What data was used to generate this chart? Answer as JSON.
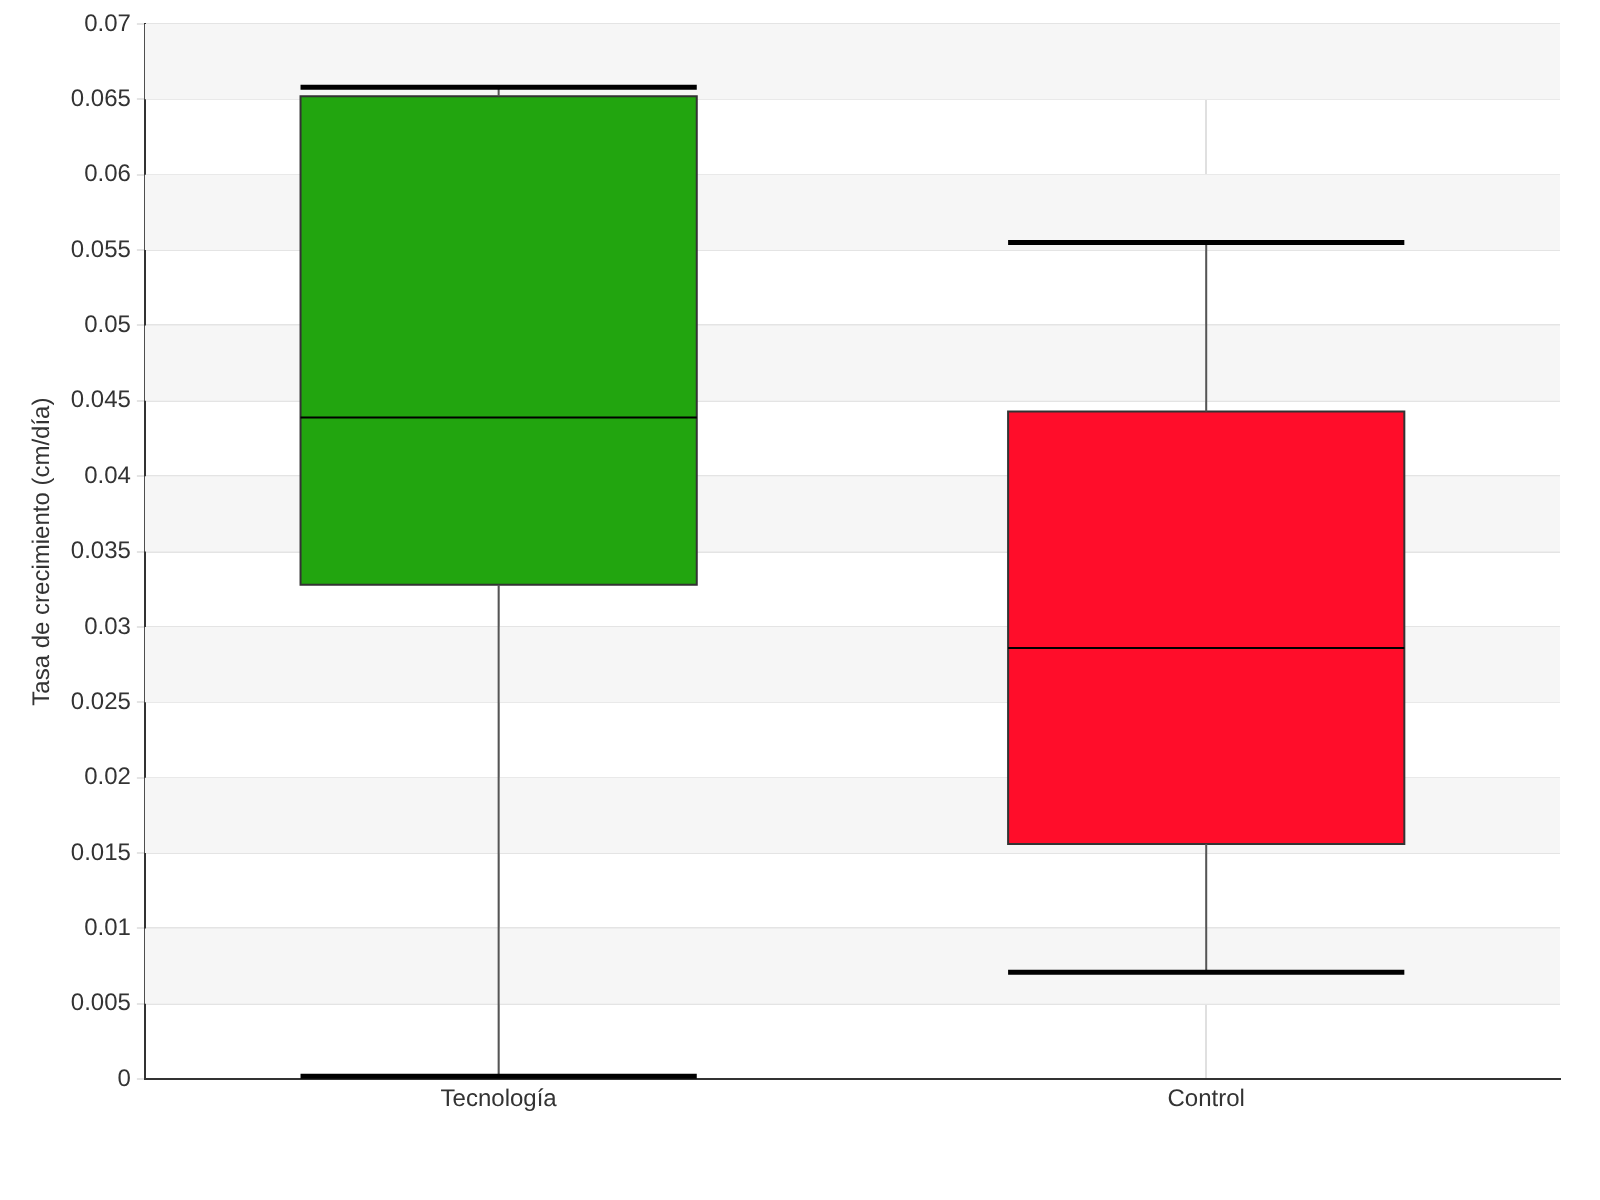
{
  "chart_data": {
    "type": "box",
    "ylabel": "Tasa de crecimiento (cm/día)",
    "categories": [
      "Tecnología",
      "Control"
    ],
    "colors": [
      "#22a50f",
      "#ff0d2a"
    ],
    "boxes": [
      {
        "low": 0.0002,
        "q1": 0.0328,
        "median": 0.0439,
        "q3": 0.0652,
        "high": 0.0658
      },
      {
        "low": 0.0071,
        "q1": 0.0156,
        "median": 0.0286,
        "q3": 0.0443,
        "high": 0.0555
      }
    ],
    "ylim": [
      0,
      0.07
    ],
    "yticks": [
      0,
      0.005,
      0.01,
      0.015,
      0.02,
      0.025,
      0.03,
      0.035,
      0.04,
      0.045,
      0.05,
      0.055,
      0.06,
      0.065,
      0.07
    ],
    "grid": true,
    "legend": false
  }
}
